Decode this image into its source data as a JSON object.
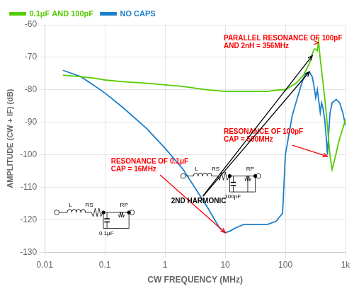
{
  "chart_data": {
    "type": "line",
    "xlabel": "CW FREQUENCY (MHz)",
    "ylabel": "AMPLITUDE (CW + IF) (dB)",
    "log": "x",
    "xlim": [
      0.01,
      1000
    ],
    "ylim": [
      -130,
      -60
    ],
    "xticks": [
      0.01,
      0.1,
      1,
      10,
      100,
      {
        "value": 1000,
        "label": "1k"
      }
    ],
    "yticks": [
      -130,
      -120,
      -110,
      -100,
      -90,
      -80,
      -70,
      -60
    ],
    "grid": true,
    "legend": "upper left",
    "series": [
      {
        "name": "0.1μF AND 100pF",
        "color": "#55cc00",
        "x": [
          0.02,
          0.04,
          0.07,
          0.1,
          0.2,
          0.5,
          1.0,
          2.0,
          5.0,
          10.0,
          20.0,
          50.0,
          80.0,
          100.0,
          150.0,
          200.0,
          250.0,
          280.0,
          300.0,
          320.0,
          340.0,
          356.0,
          365.0,
          380.0,
          400.0,
          430.0,
          460.0,
          500.0,
          550.0,
          600.0,
          650.0,
          700.0,
          750.0,
          800.0,
          900.0,
          1000.0
        ],
        "values": [
          -75.5,
          -76.0,
          -76.5,
          -77.0,
          -77.5,
          -78.0,
          -78.5,
          -79.0,
          -80.0,
          -80.5,
          -80.5,
          -80.5,
          -80.0,
          -80.0,
          -78.0,
          -75.5,
          -72.0,
          -69.0,
          -67.5,
          -67.5,
          -68.0,
          -65.0,
          -67.0,
          -70.5,
          -74.0,
          -79.0,
          -84.0,
          -91.0,
          -100.0,
          -104.5,
          -102.0,
          -99.5,
          -97.0,
          -95.0,
          -92.0,
          -89.0
        ]
      },
      {
        "name": "NO CAPS",
        "color": "#1a7fcc",
        "x": [
          0.02,
          0.04,
          0.07,
          0.1,
          0.2,
          0.5,
          1.0,
          2.0,
          5.0,
          8.0,
          10.0,
          12.0,
          15.0,
          20.0,
          30.0,
          50.0,
          70.0,
          90.0,
          100.0,
          130.0,
          150.0,
          180.0,
          200.0,
          220.0,
          250.0,
          280.0,
          300.0,
          320.0,
          340.0,
          360.0,
          380.0,
          400.0,
          420.0,
          450.0,
          480.0,
          500.0,
          550.0,
          600.0,
          650.0,
          700.0,
          750.0,
          800.0,
          900.0,
          1000.0
        ],
        "values": [
          -74.0,
          -76.0,
          -79.0,
          -81.0,
          -85.5,
          -92.0,
          -98.0,
          -104.5,
          -116.0,
          -122.5,
          -124.0,
          -123.5,
          -122.5,
          -121.5,
          -121.5,
          -121.5,
          -120.5,
          -118.0,
          -100.0,
          -88.0,
          -84.0,
          -79.0,
          -76.5,
          -75.0,
          -74.5,
          -76.0,
          -79.0,
          -82.5,
          -80.0,
          -83.5,
          -87.0,
          -84.0,
          -85.5,
          -89.0,
          -95.0,
          -100.0,
          -87.5,
          -84.0,
          -83.5,
          -83.0,
          -83.5,
          -84.0,
          -87.0,
          -91.0
        ]
      }
    ],
    "annotations": [
      {
        "text": "PARALLEL RESONANCE OF 100pF\nAND 2nH = 356MHz",
        "color": "#ff0000",
        "arrows": [
          {
            "x": 356,
            "y": -65.5
          }
        ]
      },
      {
        "text": "RESONANCE OF 100pF\nCAP = 500MHz",
        "color": "#ff0000",
        "arrows": [
          {
            "x": 500,
            "y": -100.5
          }
        ]
      },
      {
        "text": "RESONANCE OF 0.1μF\nCAP = 16MHz",
        "color": "#ff0000",
        "arrows": [
          {
            "x": 10,
            "y": -124.0
          }
        ]
      },
      {
        "text": "2ND HARMONIC",
        "color": "#000000",
        "arrows": [
          {
            "x": 280,
            "y": -69.5
          },
          {
            "x": 250,
            "y": -74.5
          }
        ]
      }
    ],
    "circuits": [
      {
        "inductor": "L",
        "series_resistor": "RS",
        "parallel_resistor": "RP",
        "capacitor": "100pF"
      },
      {
        "inductor": "L",
        "series_resistor": "RS",
        "parallel_resistor": "RP",
        "capacitor": "0.1μF"
      }
    ]
  }
}
